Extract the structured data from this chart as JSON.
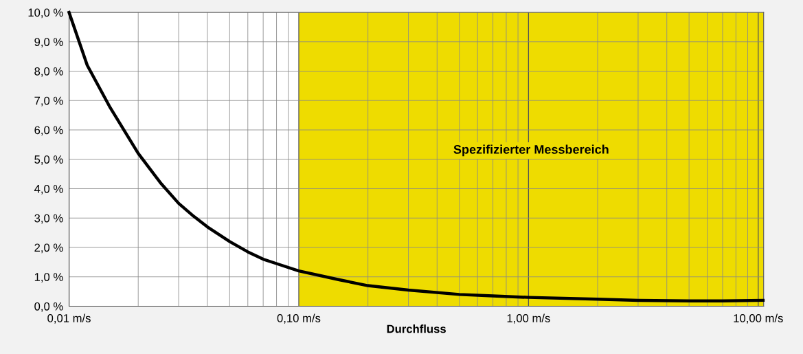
{
  "chart_data": {
    "type": "line",
    "xlabel": "Durchfluss",
    "log": "x",
    "x": [
      0.01,
      0.012,
      0.015,
      0.02,
      0.025,
      0.03,
      0.035,
      0.04,
      0.05,
      0.06,
      0.07,
      0.08,
      0.1,
      0.15,
      0.2,
      0.3,
      0.5,
      0.7,
      1.0,
      2.0,
      3.0,
      5.0,
      7.0,
      10.5
    ],
    "series": [
      {
        "color": "#000000",
        "values": [
          10.0,
          8.2,
          6.8,
          5.2,
          4.2,
          3.5,
          3.05,
          2.7,
          2.2,
          1.85,
          1.6,
          1.45,
          1.2,
          0.9,
          0.7,
          0.55,
          0.4,
          0.35,
          0.3,
          0.24,
          0.2,
          0.18,
          0.18,
          0.2
        ]
      }
    ],
    "xlim": [
      0.01,
      10.56
    ],
    "xticks": [
      {
        "value": 0.01,
        "label": "0,01 m/s"
      },
      {
        "value": 0.1,
        "label": "0,10 m/s"
      },
      {
        "value": 1,
        "label": "1,00 m/s"
      },
      {
        "value": 10,
        "label": "10,00 m/s"
      }
    ],
    "ylim": [
      0,
      10
    ],
    "yticks": [
      {
        "value": 0,
        "label": "0,0 %"
      },
      {
        "value": 1,
        "label": "1,0 %"
      },
      {
        "value": 2,
        "label": "2,0 %"
      },
      {
        "value": 3,
        "label": "3,0 %"
      },
      {
        "value": 4,
        "label": "4,0 %"
      },
      {
        "value": 5,
        "label": "5,0 %"
      },
      {
        "value": 6,
        "label": "6,0 %"
      },
      {
        "value": 7,
        "label": "7,0 %"
      },
      {
        "value": 8,
        "label": "8,0 %"
      },
      {
        "value": 9,
        "label": "9,0 %"
      },
      {
        "value": 10,
        "label": "10,0 %"
      }
    ],
    "bands": [
      {
        "axis": "x",
        "from": 0.1,
        "to": 10.56,
        "label": "Spezifizierter Messbereich",
        "color": "#eedc00"
      }
    ],
    "grid": true,
    "marker": "none",
    "line_style": "solid"
  }
}
